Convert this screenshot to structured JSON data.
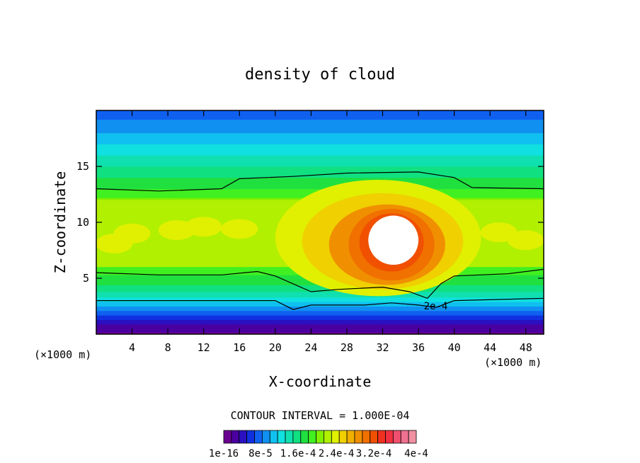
{
  "chart_data": {
    "type": "heatmap",
    "title": "density of cloud",
    "xlabel": "X-coordinate",
    "ylabel": "Z-coordinate",
    "x_unit": "(×1000 m)",
    "y_unit": "(×1000 m)",
    "xlim": [
      0,
      50
    ],
    "ylim": [
      0,
      20
    ],
    "x_ticks": [
      4,
      8,
      12,
      16,
      20,
      24,
      28,
      32,
      36,
      40,
      44,
      48
    ],
    "y_ticks": [
      5,
      10,
      15
    ],
    "contour_interval_text": "CONTOUR INTERVAL = 1.000E-04",
    "contour_label": "2e-4",
    "colorbar_labels": [
      "1e-16",
      "8e-5",
      "1.6e-4",
      "2.4e-4",
      "3.2e-4",
      "4e-4"
    ],
    "levels": [
      0.0,
      2e-05,
      4e-05,
      6e-05,
      8e-05,
      0.0001,
      0.00012,
      0.00014,
      0.00016,
      0.00018,
      0.0002,
      0.00022,
      0.00024,
      0.00026,
      0.00028,
      0.0003,
      0.00032,
      0.00034,
      0.00036,
      0.00038,
      0.0004
    ],
    "colorbar_colors": [
      "#6a0090",
      "#4a00a0",
      "#2a10c0",
      "#1030e0",
      "#1060f0",
      "#1090f0",
      "#10c0f0",
      "#10e0e0",
      "#10e0b0",
      "#10e080",
      "#20e040",
      "#40f020",
      "#80f000",
      "#b0f000",
      "#e0f000",
      "#f0d000",
      "#f0b000",
      "#f09000",
      "#f07000",
      "#f05000",
      "#f03020",
      "#f03040",
      "#f05070",
      "#f07090",
      "#f090a0"
    ],
    "max_color": "#ffffff",
    "regions": [
      {
        "level": 4e-05,
        "x_range": [
          0,
          50
        ],
        "z_range": [
          19,
          20
        ]
      },
      {
        "level": 0.00012,
        "x_range": [
          0,
          50
        ],
        "z_range": [
          15,
          17
        ]
      },
      {
        "level": 0.00018,
        "x_range": [
          0,
          50
        ],
        "z_range": [
          13,
          14
        ]
      },
      {
        "level": 0.00026,
        "x_range": [
          0,
          50
        ],
        "z_range": [
          7,
          12
        ]
      },
      {
        "level": 0.00036,
        "x_range": [
          30,
          36
        ],
        "z_range": [
          6.2,
          10.3
        ]
      },
      {
        "level": 0.00012,
        "x_range": [
          0,
          50
        ],
        "z_range": [
          2.5,
          3.5
        ]
      },
      {
        "level": 2e-05,
        "x_range": [
          0,
          50
        ],
        "z_range": [
          0.5,
          1.5
        ]
      }
    ]
  }
}
